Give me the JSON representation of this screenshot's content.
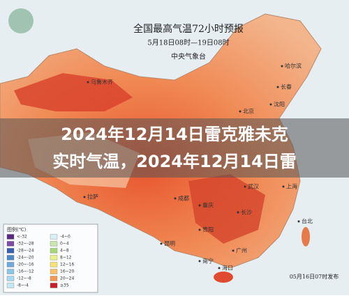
{
  "map": {
    "title": "全国最高气温72小时预报",
    "period": "5月18日08时—19日08时",
    "issuer": "中央气象台",
    "cities": [
      "乌鲁木齐",
      "哈尔滨",
      "长春",
      "沈阳",
      "北京",
      "拉萨",
      "成都",
      "重庆",
      "贵阳",
      "昆明",
      "武汉",
      "长沙",
      "上海",
      "南宁",
      "广州",
      "台北",
      "海口"
    ],
    "legend": {
      "title": "图例(℃)",
      "items": [
        "<-32",
        "-32~-28",
        "-28~-24",
        "-24~-20",
        "-20~-16",
        "-16~-12",
        "-12~-8",
        "-8~-4",
        "-4~0",
        "0~4",
        "4~8",
        "8~12",
        "12~16",
        "16~20",
        "20~24",
        "≥35"
      ]
    },
    "footer": "05月16日07时发布"
  },
  "overlay": {
    "lines": [
      "2024年12月14日雷克雅未克",
      "实时气温，2024年12月14日雷"
    ]
  }
}
